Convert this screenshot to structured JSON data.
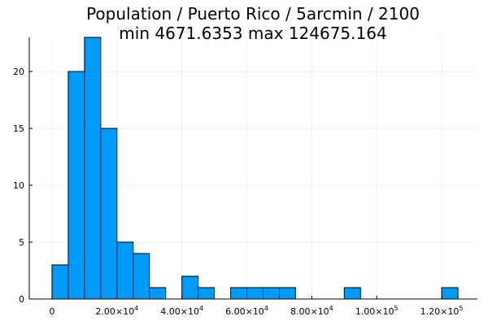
{
  "chart_data": {
    "type": "bar",
    "title_lines": [
      "Population / Puerto Rico / 5arcmin / 2100",
      "min 4671.6353  max 124675.164"
    ],
    "xlabel": "",
    "ylabel": "",
    "bin_width": 5000,
    "bins": [
      {
        "start": 0,
        "end": 5000,
        "count": 3
      },
      {
        "start": 5000,
        "end": 10000,
        "count": 20
      },
      {
        "start": 10000,
        "end": 15000,
        "count": 23
      },
      {
        "start": 15000,
        "end": 20000,
        "count": 15
      },
      {
        "start": 20000,
        "end": 25000,
        "count": 5
      },
      {
        "start": 25000,
        "end": 30000,
        "count": 4
      },
      {
        "start": 30000,
        "end": 35000,
        "count": 1
      },
      {
        "start": 40000,
        "end": 45000,
        "count": 2
      },
      {
        "start": 45000,
        "end": 50000,
        "count": 1
      },
      {
        "start": 55000,
        "end": 60000,
        "count": 1
      },
      {
        "start": 60000,
        "end": 65000,
        "count": 1
      },
      {
        "start": 65000,
        "end": 70000,
        "count": 1
      },
      {
        "start": 70000,
        "end": 75000,
        "count": 1
      },
      {
        "start": 90000,
        "end": 95000,
        "count": 1
      },
      {
        "start": 120000,
        "end": 125000,
        "count": 1
      }
    ],
    "xlim": [
      -7000,
      131000
    ],
    "ylim": [
      0,
      23
    ],
    "x_ticks": [
      {
        "value": 0,
        "mantissa": "0",
        "exp": ""
      },
      {
        "value": 20000,
        "mantissa": "2.00×10",
        "exp": "4"
      },
      {
        "value": 40000,
        "mantissa": "4.00×10",
        "exp": "4"
      },
      {
        "value": 60000,
        "mantissa": "6.00×10",
        "exp": "4"
      },
      {
        "value": 80000,
        "mantissa": "8.00×10",
        "exp": "4"
      },
      {
        "value": 100000,
        "mantissa": "1.00×10",
        "exp": "5"
      },
      {
        "value": 120000,
        "mantissa": "1.20×10",
        "exp": "5"
      }
    ],
    "y_ticks": [
      {
        "value": 0,
        "label": "0"
      },
      {
        "value": 5,
        "label": "5"
      },
      {
        "value": 10,
        "label": "10"
      },
      {
        "value": 15,
        "label": "15"
      },
      {
        "value": 20,
        "label": "20"
      }
    ],
    "grid": true,
    "legend": "none",
    "colors": {
      "bar": "#009af9",
      "bar_edge": "#000000",
      "grid": "#e6e6e6",
      "axis": "#000000"
    }
  }
}
